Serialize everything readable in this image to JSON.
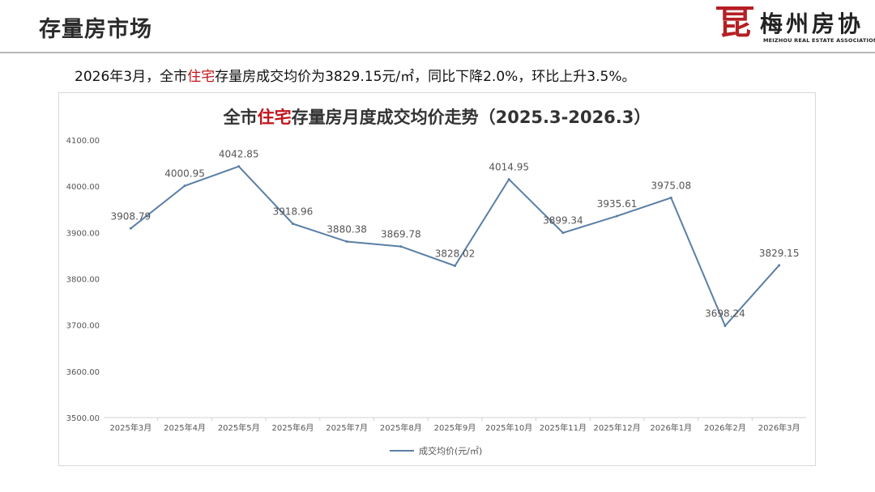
{
  "header": {
    "page_title": "存量房市场",
    "logo_mark": "昆",
    "logo_name": "梅州房协",
    "logo_subtitle": "MEIZHOU REAL ESTATE ASSOCIATION",
    "logo_color": "#b51f24"
  },
  "summary": {
    "part1": "2026年3月，全市",
    "highlight": "住宅",
    "part2": "存量房成交均价为3829.15元/㎡，同比下降2.0%，环比上升3.5%。"
  },
  "chart_data": {
    "type": "line",
    "title_part1": "全市",
    "title_highlight": "住宅",
    "title_part2": "存量房月度成交均价走势（2025.3-2026.3）",
    "categories": [
      "2025年3月",
      "2025年4月",
      "2025年5月",
      "2025年6月",
      "2025年7月",
      "2025年8月",
      "2025年9月",
      "2025年10月",
      "2025年11月",
      "2025年12月",
      "2026年1月",
      "2026年2月",
      "2026年3月"
    ],
    "series": [
      {
        "name": "成交均价(元/㎡)",
        "color": "#5b7fa6",
        "values": [
          3908.79,
          4000.95,
          4042.85,
          3918.96,
          3880.38,
          3869.78,
          3828.02,
          4014.95,
          3899.34,
          3935.61,
          3975.08,
          3698.24,
          3829.15
        ],
        "labels": [
          "3908.79",
          "4000.95",
          "4042.85",
          "3918.96",
          "3880.38",
          "3869.78",
          "3828.02",
          "4014.95",
          "3899.34",
          "3935.61",
          "3975.08",
          "3698.24",
          "3829.15"
        ]
      }
    ],
    "ylim": [
      3500,
      4100
    ],
    "yticks": [
      "3500.00",
      "3600.00",
      "3700.00",
      "3800.00",
      "3900.00",
      "4000.00",
      "4100.00"
    ],
    "legend_position": "bottom",
    "grid": false,
    "highlight_color": "#c0161c"
  }
}
